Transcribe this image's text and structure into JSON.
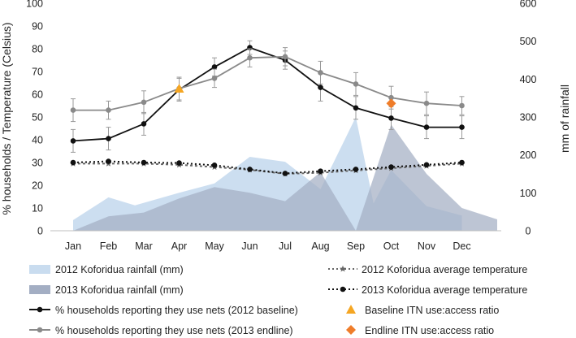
{
  "chart_data": {
    "type": "line",
    "categories": [
      "Jan",
      "Feb",
      "Mar",
      "Apr",
      "May",
      "Jun",
      "Jul",
      "Aug",
      "Sep",
      "Oct",
      "Nov",
      "Dec"
    ],
    "left_axis": {
      "label": "% households  / Temperature (Celsius)",
      "range": [
        0,
        100
      ],
      "ticks": [
        "0",
        "10",
        "20",
        "30",
        "40",
        "50",
        "60",
        "70",
        "80",
        "90",
        "100"
      ]
    },
    "right_axis": {
      "label": "mm of rainfall",
      "range": [
        0,
        600
      ],
      "ticks": [
        "0",
        "100",
        "200",
        "300",
        "400",
        "500",
        "600"
      ]
    },
    "areas": [
      {
        "name": "2012 Koforidua rainfall (mm)",
        "color": "#c9dcef",
        "x": [
          0.0,
          0.0,
          1.0,
          1.75,
          3.0,
          4.0,
          5.0,
          6.0,
          7.0,
          8.0,
          8.5,
          9.0,
          10.0,
          11.0,
          11.0
        ],
        "y": [
          0,
          28,
          88,
          67,
          100,
          125,
          195,
          182,
          110,
          300,
          72,
          160,
          65,
          40,
          0
        ]
      },
      {
        "name": "2013 Koforidua rainfall (mm)",
        "color": "#a3aec3",
        "x": [
          0.0,
          1.0,
          2.0,
          3.0,
          4.0,
          5.0,
          6.0,
          7.0,
          8.0,
          9.0,
          10.0,
          11.0,
          12.0,
          12.0
        ],
        "y": [
          0,
          38,
          48,
          85,
          115,
          100,
          78,
          155,
          0,
          280,
          150,
          60,
          30,
          0
        ]
      }
    ],
    "series": [
      {
        "name": "2012 Koforidua average temperature",
        "color": "#666666",
        "dash": "3,3",
        "marker": "star",
        "values": [
          29.5,
          29.5,
          29.5,
          29.0,
          28.0,
          26.8,
          25.0,
          25.5,
          26.5,
          27.5,
          28.5,
          29.5
        ],
        "error": [
          0,
          0,
          0,
          0,
          0,
          0,
          0,
          0,
          0,
          0,
          0,
          0
        ]
      },
      {
        "name": "2013 Koforidua average temperature",
        "color": "#111111",
        "dash": "2,3",
        "marker": "circle",
        "values": [
          30.0,
          30.5,
          30.0,
          29.8,
          28.8,
          27.0,
          25.2,
          26.2,
          27.0,
          28.0,
          29.0,
          30.0
        ],
        "error": [
          0,
          0,
          0,
          0,
          0,
          0,
          0,
          0,
          0,
          0,
          0,
          0
        ]
      },
      {
        "name": "% households reporting they use nets (2012 baseline)",
        "color": "#111111",
        "dash": "",
        "marker": "circle",
        "values": [
          39.5,
          40.5,
          47,
          62,
          72,
          80.5,
          75,
          63,
          54,
          49.5,
          45.5,
          45.5
        ],
        "error": [
          5,
          5,
          5,
          5,
          4,
          3,
          4,
          6,
          5,
          5,
          5,
          5
        ]
      },
      {
        "name": "% households reporting they use nets (2013 endline)",
        "color": "#8a8a8a",
        "dash": "",
        "marker": "circle",
        "values": [
          53,
          53,
          56.5,
          62.5,
          67,
          76,
          76.5,
          69.5,
          64.5,
          58.5,
          56,
          55
        ],
        "error": [
          5,
          4,
          5,
          5,
          4,
          4,
          4,
          5,
          5,
          5,
          5,
          4
        ]
      }
    ],
    "markers": [
      {
        "name": "Baseline ITN use:access ratio",
        "color": "#f5a623",
        "shape": "triangle",
        "x": "Apr",
        "y": 62.5
      },
      {
        "name": "Endline ITN use:access ratio",
        "color": "#ef7d2a",
        "shape": "diamond",
        "x": "Oct",
        "y": 56
      }
    ]
  },
  "legend": {
    "left": [
      {
        "label": "2012 Koforidua rainfall (mm)",
        "kind": "area",
        "color": "#c9dcef"
      },
      {
        "label": "2013 Koforidua rainfall (mm)",
        "kind": "area",
        "color": "#a3aec3"
      },
      {
        "label": "% households reporting they use nets (2012 baseline)",
        "kind": "line",
        "color": "#111111"
      },
      {
        "label": "% households reporting they use nets (2013 endline)",
        "kind": "line",
        "color": "#8a8a8a"
      }
    ],
    "right": [
      {
        "label": "2012 Koforidua average temperature",
        "kind": "dotted-star",
        "color": "#666666"
      },
      {
        "label": "2013 Koforidua average temperature",
        "kind": "dotted-circle",
        "color": "#111111"
      },
      {
        "label": "Baseline ITN use:access ratio",
        "kind": "triangle",
        "color": "#f5a623"
      },
      {
        "label": "Endline ITN use:access ratio",
        "kind": "diamond",
        "color": "#ef7d2a"
      }
    ]
  }
}
